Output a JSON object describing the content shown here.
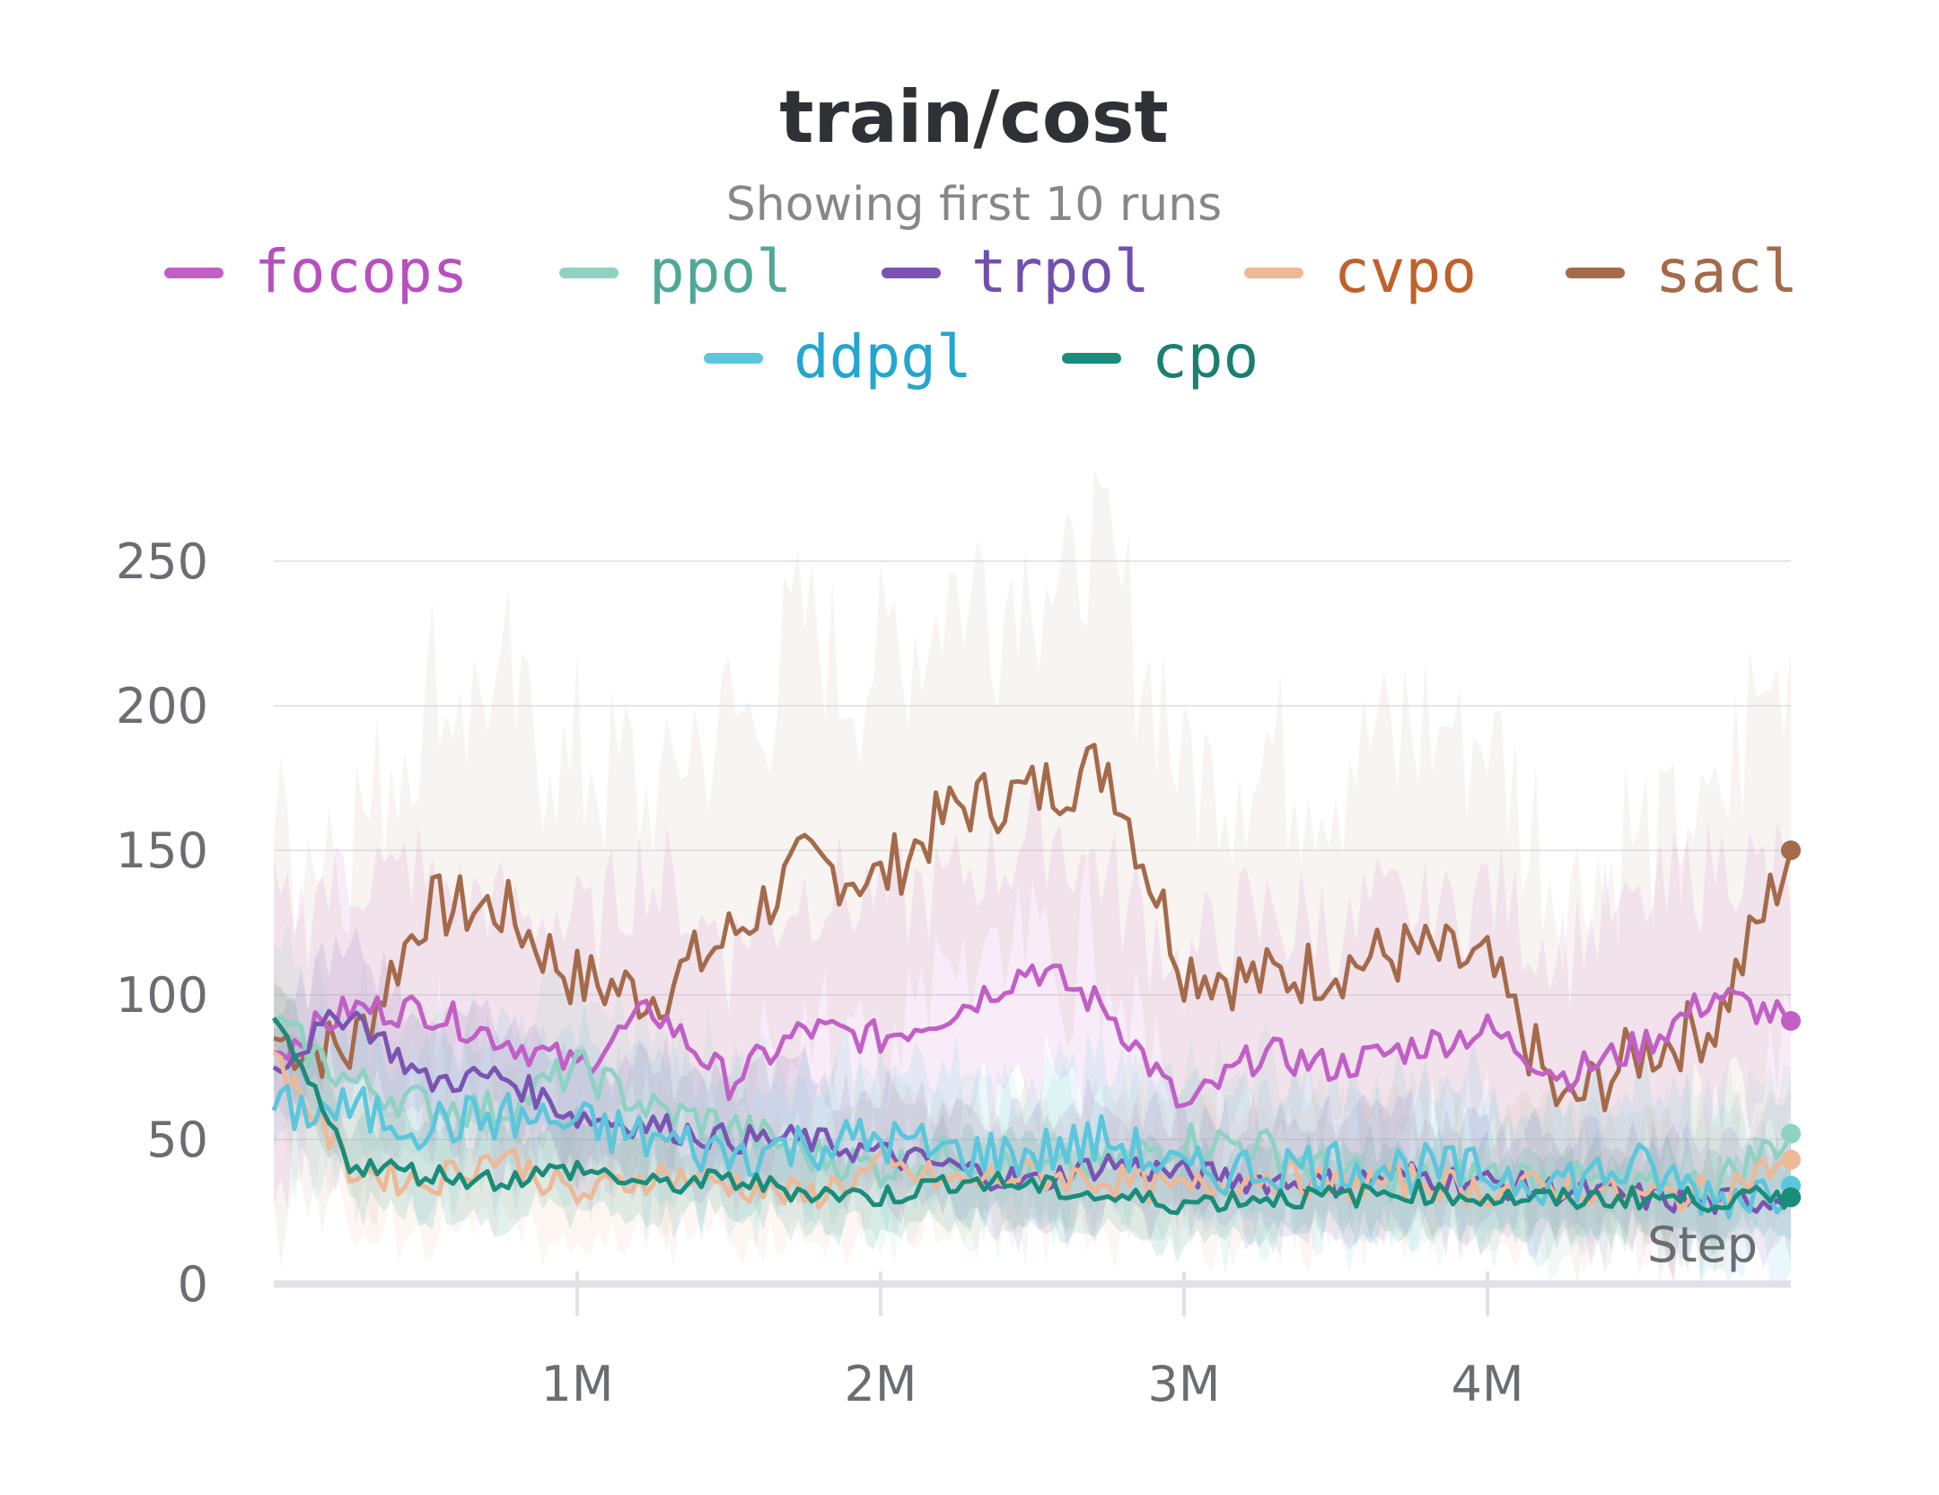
{
  "chart_data": {
    "type": "line",
    "title": "train/cost",
    "subtitle": "Showing first 10 runs",
    "xlabel": "Step",
    "ylabel": "",
    "xlim": [
      0,
      5000000
    ],
    "ylim": [
      0,
      270
    ],
    "x_ticks": [
      {
        "value": 1000000,
        "label": "1M"
      },
      {
        "value": 2000000,
        "label": "2M"
      },
      {
        "value": 3000000,
        "label": "3M"
      },
      {
        "value": 4000000,
        "label": "4M"
      }
    ],
    "y_ticks": [
      {
        "value": 0,
        "label": "0"
      },
      {
        "value": 50,
        "label": "50"
      },
      {
        "value": 100,
        "label": "100"
      },
      {
        "value": 150,
        "label": "150"
      },
      {
        "value": 200,
        "label": "200"
      },
      {
        "value": 250,
        "label": "250"
      }
    ],
    "grid": true,
    "legend_position": "top",
    "series": [
      {
        "name": "focops",
        "color": "#c25fc7",
        "text_color": "#b84fbf",
        "band_color": "#c25fc7",
        "x": [
          0,
          250000,
          500000,
          750000,
          1000000,
          1250000,
          1500000,
          1750000,
          2000000,
          2250000,
          2500000,
          2750000,
          3000000,
          3250000,
          3500000,
          3750000,
          4000000,
          4250000,
          4500000,
          4750000,
          5000000
        ],
        "values": [
          80,
          95,
          95,
          85,
          75,
          95,
          70,
          88,
          85,
          95,
          110,
          95,
          60,
          80,
          75,
          82,
          88,
          72,
          82,
          100,
          91
        ]
      },
      {
        "name": "ppol",
        "color": "#8fd2c2",
        "text_color": "#4fa896",
        "band_color": "#8fd2c2",
        "x": [
          0,
          250000,
          500000,
          750000,
          1000000,
          1250000,
          1500000,
          1750000,
          2000000,
          2250000,
          2500000,
          2750000,
          3000000,
          3250000,
          3500000,
          3750000,
          4000000,
          4250000,
          4500000,
          4750000,
          5000000
        ],
        "values": [
          90,
          70,
          62,
          60,
          75,
          60,
          55,
          45,
          40,
          45,
          38,
          42,
          50,
          48,
          38,
          35,
          38,
          36,
          32,
          35,
          52
        ]
      },
      {
        "name": "trpol",
        "color": "#7b54b3",
        "text_color": "#7050ae",
        "band_color": "#7b54b3",
        "x": [
          0,
          250000,
          500000,
          750000,
          1000000,
          1250000,
          1500000,
          1750000,
          2000000,
          2250000,
          2500000,
          2750000,
          3000000,
          3250000,
          3500000,
          3750000,
          4000000,
          4250000,
          4500000,
          4750000,
          5000000
        ],
        "values": [
          75,
          95,
          70,
          72,
          58,
          55,
          50,
          50,
          45,
          40,
          35,
          42,
          38,
          36,
          35,
          38,
          35,
          32,
          30,
          28,
          30
        ]
      },
      {
        "name": "cvpo",
        "color": "#efb896",
        "text_color": "#c0622a",
        "band_color": "#efb896",
        "x": [
          0,
          250000,
          500000,
          750000,
          1000000,
          1250000,
          1500000,
          1750000,
          2000000,
          2250000,
          2500000,
          2750000,
          3000000,
          3250000,
          3500000,
          3750000,
          4000000,
          4250000,
          4500000,
          4750000,
          5000000
        ],
        "values": [
          80,
          40,
          35,
          45,
          30,
          38,
          35,
          30,
          40,
          35,
          38,
          36,
          32,
          38,
          34,
          36,
          32,
          34,
          30,
          32,
          43
        ]
      },
      {
        "name": "sacl",
        "color": "#a56a4a",
        "text_color": "#a56a4a",
        "band_color": "#dccbbd",
        "x": [
          0,
          250000,
          500000,
          750000,
          1000000,
          1250000,
          1500000,
          1750000,
          2000000,
          2250000,
          2500000,
          2750000,
          3000000,
          3250000,
          3500000,
          3750000,
          4000000,
          4250000,
          4500000,
          4750000,
          5000000
        ],
        "values": [
          85,
          80,
          130,
          130,
          105,
          100,
          120,
          145,
          140,
          165,
          170,
          180,
          110,
          105,
          110,
          115,
          110,
          60,
          80,
          90,
          150
        ]
      },
      {
        "name": "ddpgl",
        "color": "#5bc6dc",
        "text_color": "#23a6cf",
        "band_color": "#5bc6dc",
        "x": [
          0,
          250000,
          500000,
          750000,
          1000000,
          1250000,
          1500000,
          1750000,
          2000000,
          2250000,
          2500000,
          2750000,
          3000000,
          3250000,
          3500000,
          3750000,
          4000000,
          4250000,
          4500000,
          4750000,
          5000000
        ],
        "values": [
          60,
          60,
          55,
          58,
          55,
          50,
          45,
          48,
          50,
          45,
          45,
          50,
          38,
          40,
          42,
          40,
          38,
          36,
          40,
          30,
          34
        ]
      },
      {
        "name": "cpo",
        "color": "#1a8c7a",
        "text_color": "#1a7f70",
        "band_color": "#1a8c7a",
        "x": [
          0,
          250000,
          500000,
          750000,
          1000000,
          1250000,
          1500000,
          1750000,
          2000000,
          2250000,
          2500000,
          2750000,
          3000000,
          3250000,
          3500000,
          3750000,
          4000000,
          4250000,
          4500000,
          4750000,
          5000000
        ],
        "values": [
          92,
          42,
          38,
          36,
          40,
          34,
          36,
          32,
          30,
          36,
          34,
          30,
          28,
          30,
          30,
          32,
          30,
          29,
          30,
          29,
          30
        ]
      }
    ]
  }
}
